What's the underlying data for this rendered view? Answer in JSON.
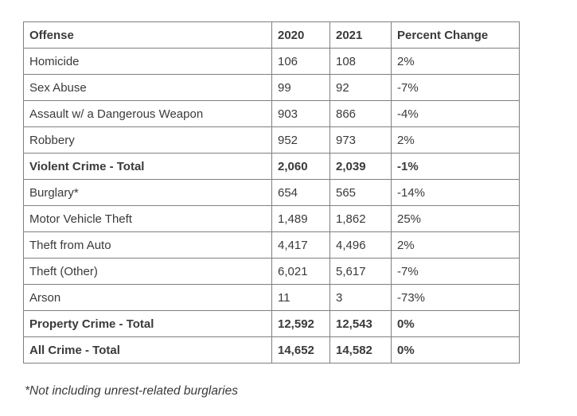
{
  "colors": {
    "border": "#7f7f7f",
    "text": "#3a3a3a",
    "background": "#ffffff"
  },
  "table": {
    "headers": [
      "Offense",
      "2020",
      "2021",
      "Percent Change"
    ],
    "rows": [
      {
        "offense": "Homicide",
        "y2020": "106",
        "y2021": "108",
        "pct": "2%",
        "bold": false
      },
      {
        "offense": "Sex Abuse",
        "y2020": "99",
        "y2021": "92",
        "pct": "-7%",
        "bold": false
      },
      {
        "offense": "Assault w/ a Dangerous Weapon",
        "y2020": "903",
        "y2021": "866",
        "pct": "-4%",
        "bold": false
      },
      {
        "offense": "Robbery",
        "y2020": "952",
        "y2021": "973",
        "pct": "2%",
        "bold": false
      },
      {
        "offense": "Violent Crime - Total",
        "y2020": "2,060",
        "y2021": "2,039",
        "pct": "-1%",
        "bold": true
      },
      {
        "offense": "Burglary*",
        "y2020": "654",
        "y2021": "565",
        "pct": "-14%",
        "bold": false
      },
      {
        "offense": "Motor Vehicle Theft",
        "y2020": "1,489",
        "y2021": "1,862",
        "pct": "25%",
        "bold": false
      },
      {
        "offense": "Theft from Auto",
        "y2020": "4,417",
        "y2021": "4,496",
        "pct": "2%",
        "bold": false
      },
      {
        "offense": "Theft (Other)",
        "y2020": "6,021",
        "y2021": "5,617",
        "pct": "-7%",
        "bold": false
      },
      {
        "offense": "Arson",
        "y2020": "11",
        "y2021": "3",
        "pct": "-73%",
        "bold": false
      },
      {
        "offense": "Property Crime - Total",
        "y2020": "12,592",
        "y2021": "12,543",
        "pct": "0%",
        "bold": true
      },
      {
        "offense": "All Crime - Total",
        "y2020": "14,652",
        "y2021": "14,582",
        "pct": "0%",
        "bold": true
      }
    ]
  },
  "footnote": "*Not including unrest-related burglaries"
}
